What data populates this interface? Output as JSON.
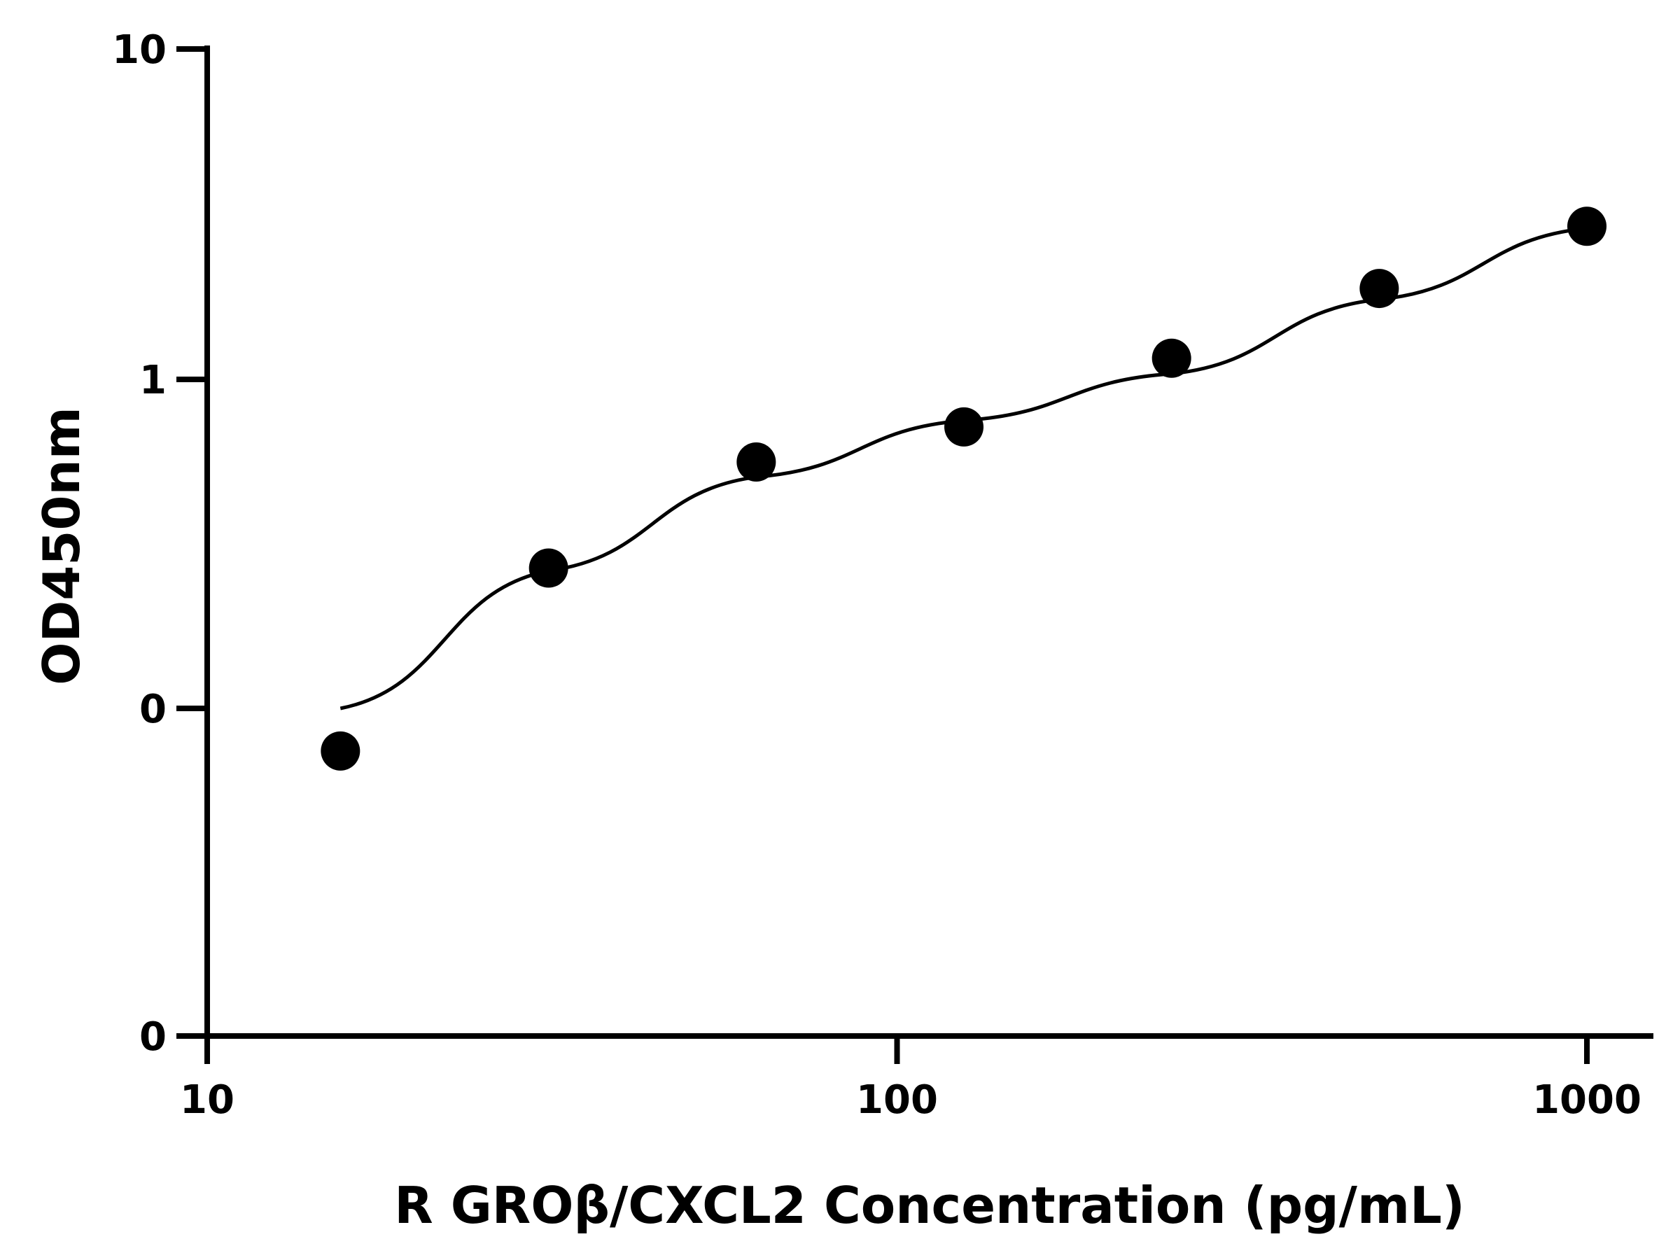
{
  "chart_data": {
    "type": "scatter",
    "title": "",
    "xlabel": "R GROβ/CXCL2 Concentration (pg/mL)",
    "ylabel": "OD450nm",
    "x_scale": "log",
    "y_scale": "custom-broken-log",
    "xlim": [
      10,
      1100
    ],
    "x_ticks": [
      10,
      100,
      1000
    ],
    "x_tick_labels": [
      "10",
      "100",
      "1000"
    ],
    "y_ticks": [
      0,
      0.1,
      1,
      10
    ],
    "y_tick_labels": [
      "0",
      "0",
      "1",
      "10"
    ],
    "grid": false,
    "legend": "none",
    "points": {
      "x": [
        15.6,
        31.25,
        62.5,
        125,
        250,
        500,
        1000
      ],
      "y": [
        0.087,
        0.267,
        0.561,
        0.717,
        1.16,
        1.89,
        2.92
      ]
    },
    "fit_curve": {
      "type": "smooth",
      "x": [
        15.6,
        31.25,
        62.5,
        125,
        250,
        500,
        1000
      ],
      "y": [
        0.1,
        0.262,
        0.505,
        0.75,
        1.04,
        1.75,
        2.88
      ]
    },
    "colors": {
      "axis": "#000000",
      "marker": "#000000",
      "curve": "#000000"
    }
  }
}
